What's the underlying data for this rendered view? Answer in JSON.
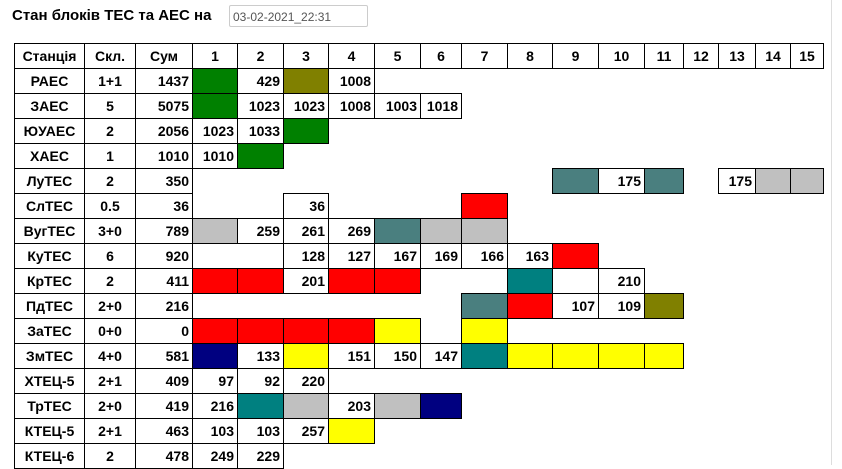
{
  "header": {
    "title": "Стан блоків ТЕС та АЕС на",
    "datetime": "03-02-2021_22:31"
  },
  "table": {
    "columns": [
      "Станція",
      "Скл.",
      "Сум",
      "1",
      "2",
      "3",
      "4",
      "5",
      "6",
      "7",
      "8",
      "9",
      "10",
      "11",
      "12",
      "13",
      "14",
      "15"
    ],
    "rows": [
      {
        "station": "РАЕС",
        "composition": "1+1",
        "sum": 1437,
        "blocks": [
          null,
          429,
          null,
          1008,
          null,
          null,
          null,
          null,
          null,
          null,
          null,
          null,
          null,
          null,
          null
        ]
      },
      {
        "station": "ЗАЕС",
        "composition": "5",
        "sum": 5075,
        "blocks": [
          null,
          1023,
          1023,
          1008,
          1003,
          1018,
          null,
          null,
          null,
          null,
          null,
          null,
          null,
          null,
          null
        ]
      },
      {
        "station": "ЮУАЕС",
        "composition": "2",
        "sum": 2056,
        "blocks": [
          1023,
          1033,
          null,
          null,
          null,
          null,
          null,
          null,
          null,
          null,
          null,
          null,
          null,
          null,
          null
        ]
      },
      {
        "station": "ХАЕС",
        "composition": "1",
        "sum": 1010,
        "blocks": [
          1010,
          null,
          null,
          null,
          null,
          null,
          null,
          null,
          null,
          null,
          null,
          null,
          null,
          null,
          null
        ]
      },
      {
        "station": "ЛуТЕС",
        "composition": "2",
        "sum": 350,
        "blocks": [
          null,
          null,
          null,
          null,
          null,
          null,
          null,
          null,
          null,
          175,
          null,
          null,
          175,
          null,
          null
        ]
      },
      {
        "station": "СлТЕС",
        "composition": "0.5",
        "sum": 36,
        "blocks": [
          null,
          null,
          36,
          null,
          null,
          null,
          null,
          null,
          null,
          null,
          null,
          null,
          null,
          null,
          null
        ]
      },
      {
        "station": "ВугТЕС",
        "composition": "3+0",
        "sum": 789,
        "blocks": [
          null,
          259,
          261,
          269,
          null,
          null,
          null,
          null,
          null,
          null,
          null,
          null,
          null,
          null,
          null
        ]
      },
      {
        "station": "КуТЕС",
        "composition": "6",
        "sum": 920,
        "blocks": [
          null,
          null,
          128,
          127,
          167,
          169,
          166,
          163,
          null,
          null,
          null,
          null,
          null,
          null,
          null
        ]
      },
      {
        "station": "КрТЕС",
        "composition": "2",
        "sum": 411,
        "blocks": [
          null,
          null,
          201,
          null,
          null,
          null,
          null,
          null,
          null,
          210,
          null,
          null,
          null,
          null,
          null
        ]
      },
      {
        "station": "ПдТЕС",
        "composition": "2+0",
        "sum": 216,
        "blocks": [
          null,
          null,
          null,
          null,
          null,
          null,
          null,
          null,
          107,
          109,
          null,
          null,
          null,
          null,
          null
        ]
      },
      {
        "station": "ЗаТЕС",
        "composition": "0+0",
        "sum": 0,
        "blocks": [
          null,
          null,
          null,
          null,
          null,
          null,
          null,
          null,
          null,
          null,
          null,
          null,
          null,
          null,
          null
        ]
      },
      {
        "station": "ЗмТЕС",
        "composition": "4+0",
        "sum": 581,
        "blocks": [
          null,
          133,
          null,
          151,
          150,
          147,
          null,
          null,
          null,
          null,
          null,
          null,
          null,
          null,
          null
        ]
      },
      {
        "station": "ХТЕЦ-5",
        "composition": "2+1",
        "sum": 409,
        "blocks": [
          97,
          92,
          220,
          null,
          null,
          null,
          null,
          null,
          null,
          null,
          null,
          null,
          null,
          null,
          null
        ]
      },
      {
        "station": "ТрТЕС",
        "composition": "2+0",
        "sum": 419,
        "blocks": [
          216,
          null,
          null,
          203,
          null,
          null,
          null,
          null,
          null,
          null,
          null,
          null,
          null,
          null,
          null
        ]
      },
      {
        "station": "КТЕЦ-5",
        "composition": "2+1",
        "sum": 463,
        "blocks": [
          103,
          103,
          257,
          null,
          null,
          null,
          null,
          null,
          null,
          null,
          null,
          null,
          null,
          null,
          null
        ]
      },
      {
        "station": "КТЕЦ-6",
        "composition": "2",
        "sum": 478,
        "blocks": [
          249,
          229,
          null,
          null,
          null,
          null,
          null,
          null,
          null,
          null,
          null,
          null,
          null,
          null,
          null
        ]
      }
    ],
    "colors": [
      [
        "#008000",
        "#ffffff",
        "#808000",
        "#ffffff",
        null,
        null,
        null,
        null,
        null,
        null,
        null,
        null,
        null,
        null,
        null
      ],
      [
        "#008000",
        "#ffffff",
        "#ffffff",
        "#ffffff",
        "#ffffff",
        "#ffffff",
        null,
        null,
        null,
        null,
        null,
        null,
        null,
        null,
        null
      ],
      [
        "#ffffff",
        "#ffffff",
        "#008000",
        null,
        null,
        null,
        null,
        null,
        null,
        null,
        null,
        null,
        null,
        null,
        null
      ],
      [
        "#ffffff",
        "#008000",
        null,
        null,
        null,
        null,
        null,
        null,
        null,
        null,
        null,
        null,
        null,
        null,
        null
      ],
      [
        null,
        null,
        null,
        null,
        null,
        null,
        null,
        null,
        "#4a7f7f",
        "#ffffff",
        "#4a7f7f",
        null,
        "#ffffff",
        "#c0c0c0",
        "#c0c0c0"
      ],
      [
        null,
        null,
        "#ffffff",
        null,
        null,
        null,
        "#ff0000",
        null,
        null,
        null,
        null,
        null,
        null,
        null,
        null
      ],
      [
        "#c0c0c0",
        "#ffffff",
        "#ffffff",
        "#ffffff",
        "#4a7f7f",
        "#c0c0c0",
        "#c0c0c0",
        null,
        null,
        null,
        null,
        null,
        null,
        null,
        null
      ],
      [
        null,
        null,
        "#ffffff",
        "#ffffff",
        "#ffffff",
        "#ffffff",
        "#ffffff",
        "#ffffff",
        "#ff0000",
        null,
        null,
        null,
        null,
        null,
        null
      ],
      [
        "#ff0000",
        "#ff0000",
        "#ffffff",
        "#ff0000",
        "#ff0000",
        null,
        null,
        "#008080",
        null,
        "#ffffff",
        null,
        null,
        null,
        null,
        null
      ],
      [
        null,
        null,
        null,
        null,
        null,
        null,
        "#4a7f7f",
        "#ff0000",
        "#ffffff",
        "#ffffff",
        "#808000",
        null,
        null,
        null,
        null
      ],
      [
        "#ff0000",
        "#ff0000",
        "#ff0000",
        "#ff0000",
        "#ffff00",
        null,
        "#ffff00",
        null,
        null,
        null,
        null,
        null,
        null,
        null,
        null
      ],
      [
        "#000080",
        "#ffffff",
        "#ffff00",
        "#ffffff",
        "#ffffff",
        "#ffffff",
        "#008080",
        "#ffff00",
        "#ffff00",
        "#ffff00",
        "#ffff00",
        null,
        null,
        null,
        null
      ],
      [
        "#ffffff",
        "#ffffff",
        "#ffffff",
        null,
        null,
        null,
        null,
        null,
        null,
        null,
        null,
        null,
        null,
        null,
        null
      ],
      [
        "#ffffff",
        "#008080",
        "#c0c0c0",
        "#ffffff",
        "#c0c0c0",
        "#000080",
        null,
        null,
        null,
        null,
        null,
        null,
        null,
        null,
        null
      ],
      [
        "#ffffff",
        "#ffffff",
        "#ffffff",
        "#ffff00",
        null,
        null,
        null,
        null,
        null,
        null,
        null,
        null,
        null,
        null,
        null
      ],
      [
        "#ffffff",
        "#ffffff",
        null,
        null,
        null,
        null,
        null,
        null,
        null,
        null,
        null,
        null,
        null,
        null,
        null
      ]
    ]
  }
}
